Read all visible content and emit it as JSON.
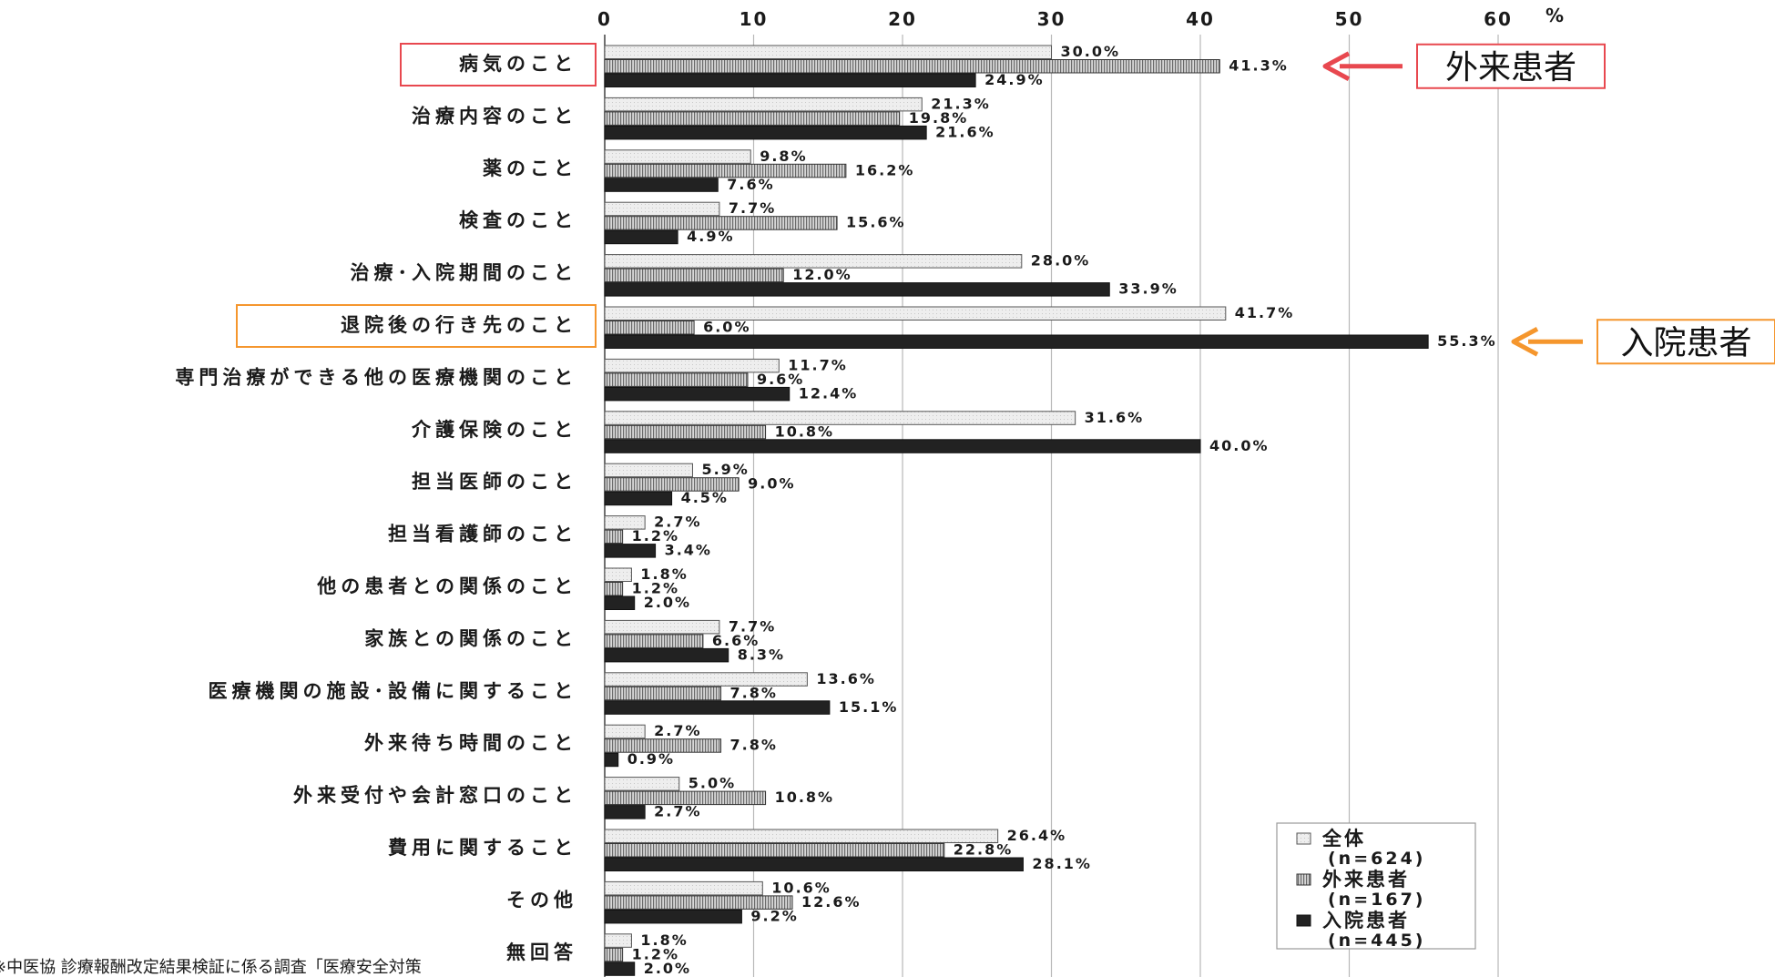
{
  "chart_data": {
    "type": "bar",
    "orientation": "horizontal",
    "x_ticks": [
      "0",
      "10",
      "20",
      "30",
      "40",
      "50",
      "60"
    ],
    "x_unit": "%",
    "xlim": [
      0,
      60
    ],
    "grid": "vertical",
    "categories": [
      "病気のこと",
      "治療内容のこと",
      "薬のこと",
      "検査のこと",
      "治療･入院期間のこと",
      "退院後の行き先のこと",
      "専門治療ができる他の医療機関のこと",
      "介護保険のこと",
      "担当医師のこと",
      "担当看護師のこと",
      "他の患者との関係のこと",
      "家族との関係のこと",
      "医療機関の施設･設備に関すること",
      "外来待ち時間のこと",
      "外来受付や会計窓口のこと",
      "費用に関すること",
      "その他",
      "無回答"
    ],
    "series": [
      {
        "name": "全体",
        "n": "(n=624)",
        "pattern": "light",
        "values": [
          30.0,
          21.3,
          9.8,
          7.7,
          28.0,
          41.7,
          11.7,
          31.6,
          5.9,
          2.7,
          1.8,
          7.7,
          13.6,
          2.7,
          5.0,
          26.4,
          10.6,
          1.8
        ],
        "labels": [
          "30.0%",
          "21.3%",
          "9.8%",
          "7.7%",
          "28.0%",
          "41.7%",
          "11.7%",
          "31.6%",
          "5.9%",
          "2.7%",
          "1.8%",
          "7.7%",
          "13.6%",
          "2.7%",
          "5.0%",
          "26.4%",
          "10.6%",
          "1.8%"
        ]
      },
      {
        "name": "外来患者",
        "n": "(n=167)",
        "pattern": "hatched",
        "values": [
          41.3,
          19.8,
          16.2,
          15.6,
          12.0,
          6.0,
          9.6,
          10.8,
          9.0,
          1.2,
          1.2,
          6.6,
          7.8,
          7.8,
          10.8,
          22.8,
          12.6,
          1.2
        ],
        "labels": [
          "41.3%",
          "19.8%",
          "16.2%",
          "15.6%",
          "12.0%",
          "6.0%",
          "9.6%",
          "10.8%",
          "9.0%",
          "1.2%",
          "1.2%",
          "6.6%",
          "7.8%",
          "7.8%",
          "10.8%",
          "22.8%",
          "12.6%",
          "1.2%"
        ]
      },
      {
        "name": "入院患者",
        "n": "(n=445)",
        "pattern": "dark",
        "values": [
          24.9,
          21.6,
          7.6,
          4.9,
          33.9,
          55.3,
          12.4,
          40.0,
          4.5,
          3.4,
          2.0,
          8.3,
          15.1,
          0.9,
          2.7,
          28.1,
          9.2,
          2.0
        ],
        "labels": [
          "24.9%",
          "21.6%",
          "7.6%",
          "4.9%",
          "33.9%",
          "55.3%",
          "12.4%",
          "40.0%",
          "4.5%",
          "3.4%",
          "2.0%",
          "8.3%",
          "15.1%",
          "0.9%",
          "2.7%",
          "28.1%",
          "9.2%",
          "2.0%"
        ]
      }
    ],
    "legend": "bottom-right",
    "callouts": [
      {
        "text": "外来患者",
        "category_index": 0,
        "series_index": 1,
        "color": "#e8484f"
      },
      {
        "text": "入院患者",
        "category_index": 5,
        "series_index": 2,
        "color": "#f5962d"
      }
    ],
    "footnote": "※中医協 診療報酬改定結果検証に係る調査「医療安全対策"
  },
  "colors": {
    "light_fill": "#ececec",
    "hatch_fill": "#b7b7b7",
    "dark_fill": "#222222",
    "grid": "#b8b8b8",
    "text": "#1a1a1a",
    "red": "#e8484f",
    "orange": "#f5962d"
  }
}
